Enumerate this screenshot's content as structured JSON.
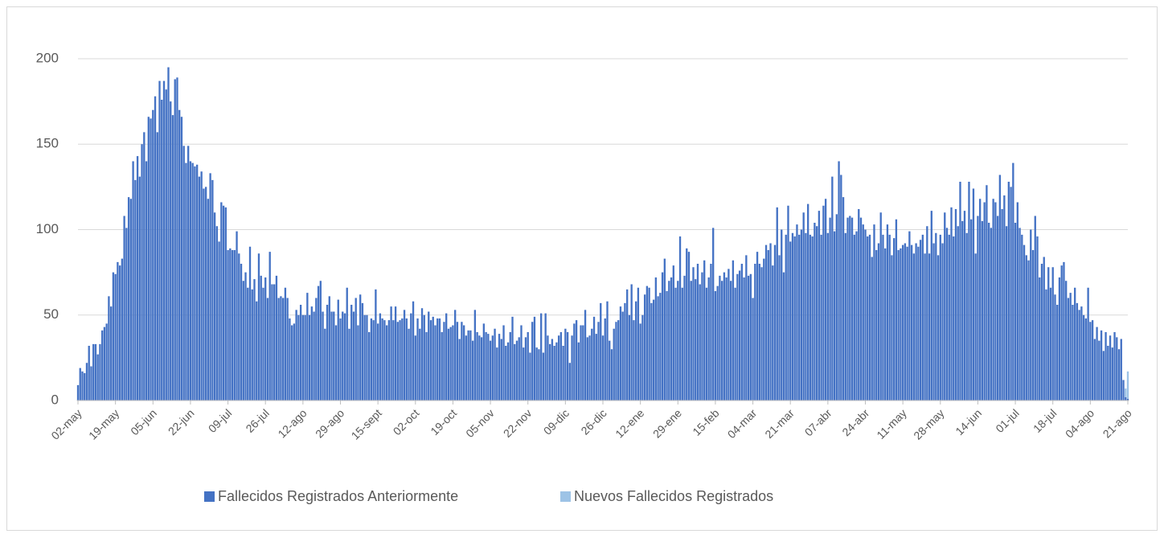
{
  "chart_data": {
    "type": "bar",
    "stacked": true,
    "grid": true,
    "legend": "bottom",
    "categories": [
      "02-may",
      null,
      null,
      null,
      null,
      null,
      null,
      null,
      null,
      null,
      null,
      null,
      null,
      null,
      null,
      null,
      null,
      "19-may",
      null,
      null,
      null,
      null,
      null,
      null,
      null,
      null,
      null,
      null,
      null,
      null,
      null,
      null,
      null,
      null,
      "05-jun",
      null,
      null,
      null,
      null,
      null,
      null,
      null,
      null,
      null,
      null,
      null,
      null,
      null,
      null,
      null,
      null,
      "22-jun",
      null,
      null,
      null,
      null,
      null,
      null,
      null,
      null,
      null,
      null,
      null,
      null,
      null,
      null,
      null,
      null,
      "09-jul",
      null,
      null,
      null,
      null,
      null,
      null,
      null,
      null,
      null,
      null,
      null,
      null,
      null,
      null,
      null,
      null,
      "26-jul",
      null,
      null,
      null,
      null,
      null,
      null,
      null,
      null,
      null,
      null,
      null,
      null,
      null,
      null,
      null,
      null,
      "12-ago",
      null,
      null,
      null,
      null,
      null,
      null,
      null,
      null,
      null,
      null,
      null,
      null,
      null,
      null,
      null,
      null,
      "29-ago",
      null,
      null,
      null,
      null,
      null,
      null,
      null,
      null,
      null,
      null,
      null,
      null,
      null,
      null,
      null,
      null,
      "15-sept",
      null,
      null,
      null,
      null,
      null,
      null,
      null,
      null,
      null,
      null,
      null,
      null,
      null,
      null,
      null,
      null,
      "02-oct",
      null,
      null,
      null,
      null,
      null,
      null,
      null,
      null,
      null,
      null,
      null,
      null,
      null,
      null,
      null,
      null,
      "19-oct",
      null,
      null,
      null,
      null,
      null,
      null,
      null,
      null,
      null,
      null,
      null,
      null,
      null,
      null,
      null,
      null,
      "05-nov",
      null,
      null,
      null,
      null,
      null,
      null,
      null,
      null,
      null,
      null,
      null,
      null,
      null,
      null,
      null,
      null,
      "22-nov",
      null,
      null,
      null,
      null,
      null,
      null,
      null,
      null,
      null,
      null,
      null,
      null,
      null,
      null,
      null,
      null,
      "09-dic",
      null,
      null,
      null,
      null,
      null,
      null,
      null,
      null,
      null,
      null,
      null,
      null,
      null,
      null,
      null,
      null,
      "26-dic",
      null,
      null,
      null,
      null,
      null,
      null,
      null,
      null,
      null,
      null,
      null,
      null,
      null,
      null,
      null,
      null,
      "12-ene",
      null,
      null,
      null,
      null,
      null,
      null,
      null,
      null,
      null,
      null,
      null,
      null,
      null,
      null,
      null,
      null,
      "29-ene",
      null,
      null,
      null,
      null,
      null,
      null,
      null,
      null,
      null,
      null,
      null,
      null,
      null,
      null,
      null,
      null,
      "15-feb",
      null,
      null,
      null,
      null,
      null,
      null,
      null,
      null,
      null,
      null,
      null,
      null,
      null,
      null,
      null,
      null,
      "04-mar",
      null,
      null,
      null,
      null,
      null,
      null,
      null,
      null,
      null,
      null,
      null,
      null,
      null,
      null,
      null,
      null,
      "21-mar",
      null,
      null,
      null,
      null,
      null,
      null,
      null,
      null,
      null,
      null,
      null,
      null,
      null,
      null,
      null,
      null,
      "07-abr",
      null,
      null,
      null,
      null,
      null,
      null,
      null,
      null,
      null,
      null,
      null,
      null,
      null,
      null,
      null,
      null,
      "24-abr",
      null,
      null,
      null,
      null,
      null,
      null,
      null,
      null,
      null,
      null,
      null,
      null,
      null,
      null,
      null,
      null,
      "11-may",
      null,
      null,
      null,
      null,
      null,
      null,
      null,
      null,
      null,
      null,
      null,
      null,
      null,
      null,
      null,
      null,
      "28-may",
      null,
      null,
      null,
      null,
      null,
      null,
      null,
      null,
      null,
      null,
      null,
      null,
      null,
      null,
      null,
      null,
      "14-jun",
      null,
      null,
      null,
      null,
      null,
      null,
      null,
      null,
      null,
      null,
      null,
      null,
      null,
      null,
      null,
      null,
      "01-jul",
      null,
      null,
      null,
      null,
      null,
      null,
      null,
      null,
      null,
      null,
      null,
      null,
      null,
      null,
      null,
      null,
      "18-jul",
      null,
      null,
      null,
      null,
      null,
      null,
      null,
      null,
      null,
      null,
      null,
      null,
      null,
      null,
      null,
      null,
      "04-ago",
      null,
      null,
      null,
      null,
      null,
      null,
      null,
      null,
      null,
      null,
      null,
      null,
      null,
      null,
      null,
      null,
      "21-ago"
    ],
    "series": [
      {
        "name": "Fallecidos Registrados Anteriormente",
        "color": "#4472c4",
        "values": [
          9,
          19,
          17,
          16,
          22,
          32,
          20,
          33,
          33,
          27,
          33,
          41,
          43,
          45,
          61,
          55,
          75,
          74,
          81,
          79,
          83,
          108,
          101,
          119,
          118,
          140,
          129,
          143,
          131,
          150,
          157,
          140,
          166,
          165,
          170,
          178,
          157,
          187,
          176,
          187,
          182,
          195,
          175,
          167,
          188,
          189,
          170,
          166,
          149,
          139,
          149,
          140,
          139,
          137,
          138,
          131,
          134,
          124,
          125,
          118,
          133,
          129,
          110,
          102,
          93,
          116,
          114,
          113,
          88,
          89,
          88,
          88,
          99,
          86,
          80,
          70,
          75,
          66,
          90,
          65,
          71,
          58,
          86,
          73,
          66,
          72,
          60,
          87,
          68,
          68,
          73,
          60,
          61,
          60,
          66,
          60,
          48,
          44,
          45,
          53,
          50,
          56,
          50,
          50,
          63,
          50,
          55,
          52,
          60,
          67,
          70,
          52,
          42,
          56,
          61,
          52,
          52,
          44,
          59,
          48,
          52,
          51,
          66,
          42,
          56,
          52,
          60,
          44,
          62,
          57,
          50,
          50,
          40,
          48,
          47,
          65,
          45,
          51,
          48,
          47,
          44,
          47,
          55,
          47,
          55,
          46,
          47,
          48,
          53,
          48,
          42,
          51,
          58,
          38,
          48,
          42,
          54,
          50,
          40,
          52,
          47,
          49,
          44,
          48,
          48,
          40,
          46,
          51,
          42,
          43,
          44,
          53,
          46,
          36,
          46,
          44,
          38,
          41,
          41,
          35,
          53,
          40,
          38,
          37,
          45,
          40,
          39,
          35,
          38,
          42,
          31,
          39,
          36,
          44,
          32,
          34,
          40,
          49,
          33,
          35,
          37,
          44,
          31,
          37,
          40,
          28,
          46,
          49,
          31,
          30,
          51,
          28,
          51,
          38,
          33,
          36,
          32,
          34,
          38,
          40,
          32,
          42,
          40,
          22,
          38,
          45,
          47,
          34,
          44,
          44,
          53,
          37,
          38,
          42,
          49,
          39,
          46,
          57,
          38,
          48,
          58,
          35,
          30,
          42,
          46,
          47,
          55,
          52,
          57,
          65,
          50,
          68,
          47,
          58,
          66,
          45,
          50,
          62,
          67,
          66,
          57,
          59,
          72,
          61,
          63,
          75,
          83,
          64,
          70,
          72,
          79,
          66,
          70,
          96,
          66,
          73,
          89,
          87,
          70,
          78,
          71,
          80,
          68,
          75,
          82,
          66,
          72,
          80,
          101,
          64,
          67,
          73,
          70,
          75,
          72,
          77,
          70,
          82,
          66,
          74,
          76,
          80,
          72,
          85,
          73,
          74,
          60,
          80,
          87,
          80,
          78,
          83,
          91,
          88,
          92,
          79,
          91,
          113,
          85,
          100,
          75,
          97,
          114,
          93,
          98,
          96,
          103,
          97,
          100,
          110,
          98,
          115,
          97,
          96,
          104,
          102,
          111,
          97,
          114,
          118,
          98,
          107,
          131,
          99,
          109,
          140,
          132,
          119,
          98,
          107,
          108,
          107,
          97,
          99,
          112,
          107,
          103,
          100,
          96,
          97,
          84,
          103,
          88,
          92,
          110,
          97,
          89,
          103,
          97,
          85,
          95,
          106,
          88,
          89,
          91,
          92,
          90,
          99,
          91,
          86,
          92,
          90,
          94,
          97,
          86,
          102,
          86,
          111,
          92,
          98,
          85,
          97,
          92,
          110,
          101,
          97,
          113,
          96,
          112,
          102,
          128,
          105,
          111,
          98,
          128,
          106,
          124,
          86,
          108,
          118,
          105,
          116,
          126,
          104,
          101,
          118,
          116,
          108,
          132,
          112,
          120,
          102,
          128,
          125,
          139,
          104,
          116,
          101,
          97,
          91,
          85,
          82,
          100,
          88,
          108,
          96,
          72,
          80,
          84,
          65,
          78,
          66,
          78,
          62,
          56,
          72,
          79,
          81,
          70,
          60,
          63,
          56,
          66,
          57,
          53,
          55,
          50,
          48,
          66,
          46,
          47,
          36,
          43,
          35,
          41,
          29,
          40,
          32,
          38,
          31,
          40,
          37,
          30,
          36,
          12,
          2,
          1
        ]
      },
      {
        "name": "Nuevos Fallecidos Registrados",
        "color": "#9dc3e6",
        "values": [
          0,
          0,
          0,
          0,
          0,
          0,
          0,
          0,
          0,
          0,
          0,
          0,
          0,
          0,
          0,
          0,
          0,
          0,
          0,
          0,
          0,
          0,
          0,
          0,
          0,
          0,
          0,
          0,
          0,
          0,
          0,
          0,
          0,
          0,
          0,
          0,
          0,
          0,
          0,
          0,
          0,
          0,
          0,
          0,
          0,
          0,
          0,
          0,
          0,
          0,
          0,
          0,
          0,
          0,
          0,
          0,
          0,
          0,
          0,
          0,
          0,
          0,
          0,
          0,
          0,
          0,
          0,
          0,
          0,
          0,
          0,
          0,
          0,
          0,
          0,
          0,
          0,
          0,
          0,
          0,
          0,
          0,
          0,
          0,
          0,
          0,
          0,
          0,
          0,
          0,
          0,
          0,
          0,
          0,
          0,
          0,
          0,
          0,
          0,
          0,
          0,
          0,
          0,
          0,
          0,
          0,
          0,
          0,
          0,
          0,
          0,
          0,
          0,
          0,
          0,
          0,
          0,
          0,
          0,
          0,
          0,
          0,
          0,
          0,
          0,
          0,
          0,
          0,
          0,
          0,
          0,
          0,
          0,
          0,
          0,
          0,
          0,
          0,
          0,
          0,
          0,
          0,
          0,
          0,
          0,
          0,
          0,
          0,
          0,
          0,
          0,
          0,
          0,
          0,
          0,
          0,
          0,
          0,
          0,
          0,
          0,
          0,
          0,
          0,
          0,
          0,
          0,
          0,
          0,
          0,
          0,
          0,
          0,
          0,
          0,
          0,
          0,
          0,
          0,
          0,
          0,
          0,
          0,
          0,
          0,
          0,
          0,
          0,
          0,
          0,
          0,
          0,
          0,
          0,
          0,
          0,
          0,
          0,
          0,
          0,
          0,
          0,
          0,
          0,
          0,
          0,
          0,
          0,
          0,
          0,
          0,
          0,
          0,
          0,
          0,
          0,
          0,
          0,
          0,
          0,
          0,
          0,
          0,
          0,
          0,
          0,
          0,
          0,
          0,
          0,
          0,
          0,
          0,
          0,
          0,
          0,
          0,
          0,
          0,
          0,
          0,
          0,
          0,
          0,
          0,
          0,
          0,
          0,
          0,
          0,
          0,
          0,
          0,
          0,
          0,
          0,
          0,
          0,
          0,
          0,
          0,
          0,
          0,
          0,
          0,
          0,
          0,
          0,
          0,
          0,
          0,
          0,
          0,
          0,
          0,
          0,
          0,
          0,
          0,
          0,
          0,
          0,
          0,
          0,
          0,
          0,
          0,
          0,
          0,
          0,
          0,
          0,
          0,
          0,
          0,
          0,
          0,
          0,
          0,
          0,
          0,
          0,
          0,
          0,
          0,
          0,
          0,
          0,
          0,
          0,
          0,
          0,
          0,
          0,
          0,
          0,
          0,
          0,
          0,
          0,
          0,
          0,
          0,
          0,
          0,
          0,
          0,
          0,
          0,
          0,
          0,
          0,
          0,
          0,
          0,
          0,
          0,
          0,
          0,
          0,
          0,
          0,
          0,
          0,
          0,
          0,
          0,
          0,
          0,
          0,
          0,
          0,
          0,
          0,
          0,
          0,
          0,
          0,
          0,
          0,
          0,
          0,
          0,
          0,
          0,
          0,
          0,
          0,
          0,
          0,
          0,
          0,
          0,
          0,
          0,
          0,
          0,
          0,
          0,
          0,
          0,
          0,
          0,
          0,
          0,
          0,
          0,
          0,
          0,
          0,
          0,
          0,
          0,
          0,
          0,
          0,
          0,
          0,
          0,
          0,
          0,
          0,
          0,
          0,
          0,
          0,
          0,
          0,
          0,
          0,
          0,
          0,
          0,
          0,
          0,
          0,
          0,
          0,
          0,
          0,
          0,
          0,
          0,
          0,
          0,
          0,
          0,
          0,
          0,
          0,
          0,
          0,
          0,
          0,
          0,
          0,
          0,
          0,
          0,
          0,
          0,
          0,
          0,
          0,
          0,
          0,
          0,
          0,
          0,
          0,
          0,
          0,
          0,
          0,
          0,
          0,
          0,
          0,
          0,
          0,
          0,
          0,
          0,
          0,
          0,
          0,
          0,
          0,
          0,
          0,
          0,
          0,
          0,
          0,
          0,
          5,
          16
        ]
      }
    ],
    "ylim": [
      0,
      200
    ],
    "yticks": [
      0,
      50,
      100,
      150,
      200
    ]
  }
}
